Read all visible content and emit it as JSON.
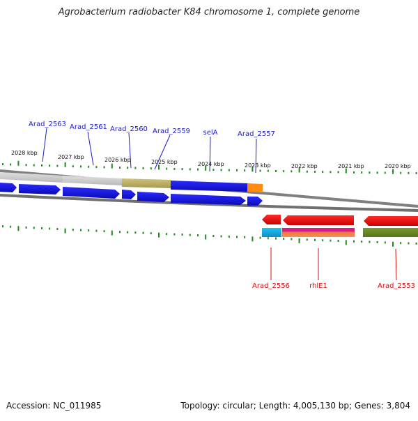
{
  "title": "Agrobacterium radiobacter K84 chromosome 1, complete genome",
  "footer": {
    "accession": "Accession: NC_011985",
    "topology": "Topology: circular; Length: 4,005,130 bp; Genes: 3,804"
  },
  "scale": {
    "unit": "kbp",
    "ticks": [
      "2028 kbp",
      "2027 kbp",
      "2026 kbp",
      "2025 kbp",
      "2024 kbp",
      "2023 kbp",
      "2022 kbp",
      "2021 kbp",
      "2020 kbp"
    ]
  },
  "forward_genes": [
    "Arad_2563",
    "Arad_2561",
    "Arad_2560",
    "Arad_2559",
    "selA",
    "Arad_2557"
  ],
  "reverse_genes": [
    "Arad_2556",
    "rhlE1",
    "Arad_2553"
  ],
  "colors": {
    "forward_label": "#1a1acc",
    "reverse_label": "#cc1111",
    "forward_gene": "#1010e0",
    "reverse_gene": "#ee1111",
    "tick": "#1e8a1e",
    "backbone": "#777777"
  }
}
